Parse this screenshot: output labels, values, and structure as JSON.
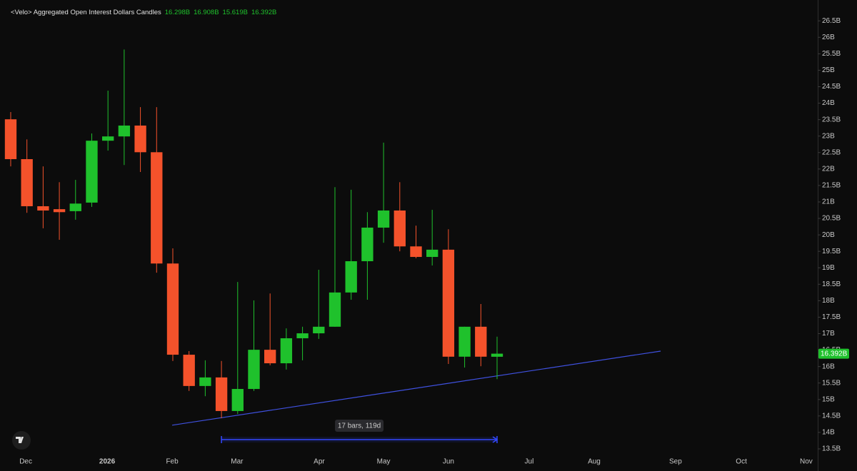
{
  "chart_data": {
    "type": "candlestick",
    "title": "<Velo> Aggregated Open Interest Dollars Candles",
    "ohlc_labels": [
      "16.298B",
      "16.908B",
      "15.619B",
      "16.392B"
    ],
    "last_price_label": "16.392B",
    "up_color": "#1fc12c",
    "down_color": "#f4522b",
    "x": [
      0,
      1,
      2,
      3,
      4,
      5,
      6,
      7,
      8,
      9,
      10,
      11,
      12,
      13,
      14,
      15,
      16,
      17,
      18,
      19,
      20,
      21,
      22,
      23,
      24,
      25,
      26,
      27,
      28,
      29,
      30
    ],
    "open": [
      23.51,
      22.3,
      20.87,
      20.78,
      20.72,
      20.98,
      22.86,
      22.99,
      23.32,
      22.51,
      19.13,
      16.36,
      15.41,
      15.67,
      14.65,
      15.32,
      16.51,
      16.1,
      16.86,
      17.01,
      17.21,
      18.25,
      19.2,
      20.22,
      20.74,
      19.65,
      19.33,
      19.55,
      16.3,
      17.21,
      16.298
    ],
    "high": [
      23.73,
      22.9,
      22.08,
      21.6,
      21.67,
      23.08,
      24.38,
      25.63,
      23.88,
      23.88,
      19.59,
      16.47,
      16.19,
      16.17,
      18.57,
      18.01,
      18.22,
      17.16,
      17.21,
      18.94,
      21.45,
      21.37,
      20.69,
      22.8,
      21.6,
      20.28,
      20.76,
      20.17,
      17.21,
      17.9,
      16.908
    ],
    "low": [
      22.08,
      20.67,
      20.2,
      19.85,
      20.46,
      20.85,
      22.56,
      22.12,
      21.91,
      18.85,
      16.17,
      15.26,
      15.1,
      14.43,
      14.56,
      15.26,
      16.04,
      15.91,
      16.19,
      16.84,
      17.21,
      18.03,
      18.03,
      19.76,
      19.5,
      19.29,
      19.07,
      16.08,
      15.97,
      16.01,
      15.619
    ],
    "close": [
      22.3,
      20.87,
      20.74,
      20.69,
      20.95,
      22.86,
      22.99,
      23.32,
      22.51,
      19.13,
      16.36,
      15.41,
      15.67,
      14.65,
      15.32,
      16.51,
      16.1,
      16.86,
      17.01,
      17.21,
      18.25,
      19.2,
      20.22,
      20.74,
      19.65,
      19.33,
      19.55,
      16.3,
      17.21,
      16.3,
      16.392
    ],
    "xlim": [
      -0.66,
      49.78
    ],
    "xticks": [
      {
        "value": 0.93,
        "label": "Dec"
      },
      {
        "value": 5.95,
        "label": "2026"
      },
      {
        "value": 9.96,
        "label": "Feb"
      },
      {
        "value": 13.96,
        "label": "Mar"
      },
      {
        "value": 19.03,
        "label": "Apr"
      },
      {
        "value": 23.0,
        "label": "May"
      },
      {
        "value": 27.0,
        "label": "Jun"
      },
      {
        "value": 31.98,
        "label": "Jul"
      },
      {
        "value": 35.99,
        "label": "Aug"
      },
      {
        "value": 41.01,
        "label": "Sep"
      },
      {
        "value": 45.07,
        "label": "Oct"
      },
      {
        "value": 49.07,
        "label": "Nov"
      }
    ],
    "ylim": [
      13.37,
      26.96
    ],
    "yticks": [
      {
        "value": 13.5,
        "label": "13.5B"
      },
      {
        "value": 14,
        "label": "14B"
      },
      {
        "value": 14.5,
        "label": "14.5B"
      },
      {
        "value": 15,
        "label": "15B"
      },
      {
        "value": 15.5,
        "label": "15.5B"
      },
      {
        "value": 16,
        "label": "16B"
      },
      {
        "value": 16.5,
        "label": "16.5B"
      },
      {
        "value": 17,
        "label": "17B"
      },
      {
        "value": 17.5,
        "label": "17.5B"
      },
      {
        "value": 18,
        "label": "18B"
      },
      {
        "value": 18.5,
        "label": "18.5B"
      },
      {
        "value": 19,
        "label": "19B"
      },
      {
        "value": 19.5,
        "label": "19.5B"
      },
      {
        "value": 20,
        "label": "20B"
      },
      {
        "value": 20.5,
        "label": "20.5B"
      },
      {
        "value": 21,
        "label": "21B"
      },
      {
        "value": 21.5,
        "label": "21.5B"
      },
      {
        "value": 22,
        "label": "22B"
      },
      {
        "value": 22.5,
        "label": "22.5B"
      },
      {
        "value": 23,
        "label": "23B"
      },
      {
        "value": 23.5,
        "label": "23.5B"
      },
      {
        "value": 24,
        "label": "24B"
      },
      {
        "value": 24.5,
        "label": "24.5B"
      },
      {
        "value": 25,
        "label": "25B"
      },
      {
        "value": 25.5,
        "label": "25.5B"
      },
      {
        "value": 26,
        "label": "26B"
      },
      {
        "value": 26.5,
        "label": "26.5B"
      }
    ],
    "trendline": {
      "x": [
        9.96,
        40.09
      ],
      "values": [
        14.22,
        16.47
      ],
      "color": "#3f51e0"
    },
    "measure": {
      "label": "17 bars, 119d",
      "x": [
        13,
        30
      ],
      "color": "#3348ff"
    }
  }
}
